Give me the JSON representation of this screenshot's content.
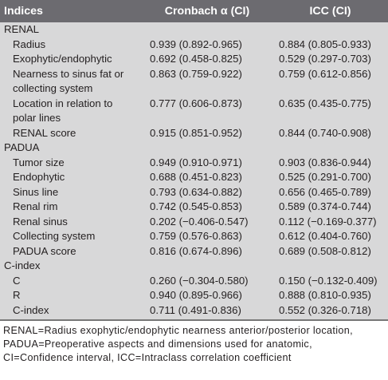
{
  "header": {
    "col1": "Indices",
    "col2": "Cronbach α (CI)",
    "col3": "ICC (CI)"
  },
  "sections": [
    {
      "title": "RENAL",
      "rows": [
        {
          "label": "Radius",
          "cronbach": "0.939 (0.892-0.965)",
          "icc": "0.884 (0.805-0.933)"
        },
        {
          "label": "Exophytic/endophytic",
          "cronbach": "0.692 (0.458-0.825)",
          "icc": "0.529 (0.297-0.703)"
        },
        {
          "label": "Nearness to sinus fat or collecting system",
          "cronbach": "0.863 (0.759-0.922)",
          "icc": "0.759 (0.612-0.856)"
        },
        {
          "label": "Location in relation to polar lines",
          "cronbach": "0.777 (0.606-0.873)",
          "icc": "0.635 (0.435-0.775)"
        },
        {
          "label": "RENAL score",
          "cronbach": "0.915 (0.851-0.952)",
          "icc": "0.844 (0.740-0.908)"
        }
      ]
    },
    {
      "title": "PADUA",
      "rows": [
        {
          "label": "Tumor size",
          "cronbach": "0.949 (0.910-0.971)",
          "icc": "0.903 (0.836-0.944)"
        },
        {
          "label": "Endophytic",
          "cronbach": "0.688 (0.451-0.823)",
          "icc": "0.525 (0.291-0.700)"
        },
        {
          "label": "Sinus line",
          "cronbach": "0.793 (0.634-0.882)",
          "icc": "0.656 (0.465-0.789)"
        },
        {
          "label": "Renal rim",
          "cronbach": "0.742 (0.545-0.853)",
          "icc": "0.589 (0.374-0.744)"
        },
        {
          "label": "Renal sinus",
          "cronbach": "0.202 (−0.406-0.547)",
          "icc": "0.112 (−0.169-0.377)"
        },
        {
          "label": "Collecting system",
          "cronbach": "0.759 (0.576-0.863)",
          "icc": "0.612 (0.404-0.760)"
        },
        {
          "label": "PADUA score",
          "cronbach": "0.816 (0.674-0.896)",
          "icc": "0.689 (0.508-0.812)"
        }
      ]
    },
    {
      "title": "C-index",
      "rows": [
        {
          "label": "C",
          "cronbach": "0.260 (−0.304-0.580)",
          "icc": "0.150 (−0.132-0.409)"
        },
        {
          "label": "R",
          "cronbach": "0.940 (0.895-0.966)",
          "icc": "0.888 (0.810-0.935)"
        },
        {
          "label": "C-index",
          "cronbach": "0.711 (0.491-0.836)",
          "icc": "0.552 (0.326-0.718)"
        }
      ]
    }
  ],
  "footnote": "RENAL=Radius exophytic/endophytic nearness anterior/posterior location, PADUA=Preoperative aspects and dimensions used for anatomic, CI=Confidence interval, ICC=Intraclass correlation coefficient"
}
